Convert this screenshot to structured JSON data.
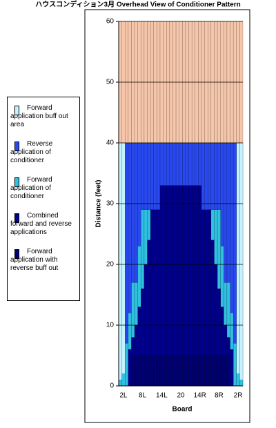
{
  "chart_data": {
    "type": "bar",
    "title": "ハウスコンディション3月 Overhead View of Conditioner Pattern",
    "xlabel": "Board",
    "ylabel": "Distance (feet)",
    "categories": [
      null,
      "2L",
      null,
      null,
      null,
      null,
      null,
      "8L",
      null,
      null,
      null,
      null,
      null,
      "14L",
      null,
      null,
      null,
      null,
      null,
      "20",
      null,
      null,
      null,
      null,
      null,
      "14R",
      null,
      null,
      null,
      null,
      null,
      "8R",
      null,
      null,
      null,
      null,
      null,
      "2R",
      null
    ],
    "ylim": [
      0,
      60
    ],
    "yticks": [
      0,
      10,
      20,
      30,
      40,
      50,
      60
    ],
    "series": [
      {
        "color": "#f5c6aa",
        "values": [
          60,
          60,
          60,
          60,
          60,
          60,
          60,
          60,
          60,
          60,
          60,
          60,
          60,
          60,
          60,
          60,
          60,
          60,
          60,
          60,
          60,
          60,
          60,
          60,
          60,
          60,
          60,
          60,
          60,
          60,
          60,
          60,
          60,
          60,
          60,
          60,
          60,
          60,
          60
        ]
      },
      {
        "name": "Forward application buff out area",
        "color": "#c4f2ff",
        "values": [
          40,
          40,
          40,
          40,
          40,
          40,
          40,
          40,
          40,
          40,
          40,
          40,
          40,
          40,
          40,
          40,
          40,
          40,
          40,
          40,
          40,
          40,
          40,
          40,
          40,
          40,
          40,
          40,
          40,
          40,
          40,
          40,
          40,
          40,
          40,
          40,
          40,
          40,
          40
        ]
      },
      {
        "name": "Reverse application of conditioner",
        "color": "#2848f0",
        "values": [
          0,
          0,
          40,
          40,
          40,
          40,
          40,
          40,
          40,
          40,
          40,
          40,
          40,
          40,
          40,
          40,
          40,
          40,
          40,
          40,
          40,
          40,
          40,
          40,
          40,
          40,
          40,
          40,
          40,
          40,
          40,
          40,
          40,
          40,
          40,
          40,
          40,
          0,
          0
        ]
      },
      {
        "name": "Forward application of conditioner",
        "color": "#30c0e0",
        "values": [
          1,
          2,
          7,
          12,
          17,
          17,
          23,
          29,
          29,
          29,
          29,
          24,
          0,
          0,
          0,
          0,
          0,
          0,
          0,
          0,
          0,
          0,
          0,
          0,
          0,
          0,
          0,
          24,
          29,
          29,
          29,
          29,
          23,
          17,
          17,
          12,
          7,
          2,
          1
        ]
      },
      {
        "name": "Combined forward and reverse applications",
        "color": "#00008c",
        "values": [
          0,
          0,
          0,
          6,
          8,
          10,
          13,
          16,
          20,
          24,
          29,
          29,
          29,
          33,
          33,
          33,
          33,
          33,
          33,
          33,
          33,
          33,
          33,
          33,
          33,
          33,
          29,
          29,
          29,
          24,
          20,
          16,
          13,
          10,
          8,
          6,
          0,
          0,
          0
        ]
      },
      {
        "name": "Forward application with reverse buff out",
        "color": "#000070",
        "values": [
          0,
          0,
          0,
          0,
          5,
          5,
          5,
          5,
          5,
          5,
          5,
          5,
          5,
          5,
          5,
          5,
          5,
          5,
          5,
          5,
          5,
          5,
          5,
          5,
          5,
          5,
          5,
          5,
          5,
          5,
          5,
          5,
          5,
          5,
          5,
          0,
          0,
          0,
          0
        ]
      }
    ]
  }
}
